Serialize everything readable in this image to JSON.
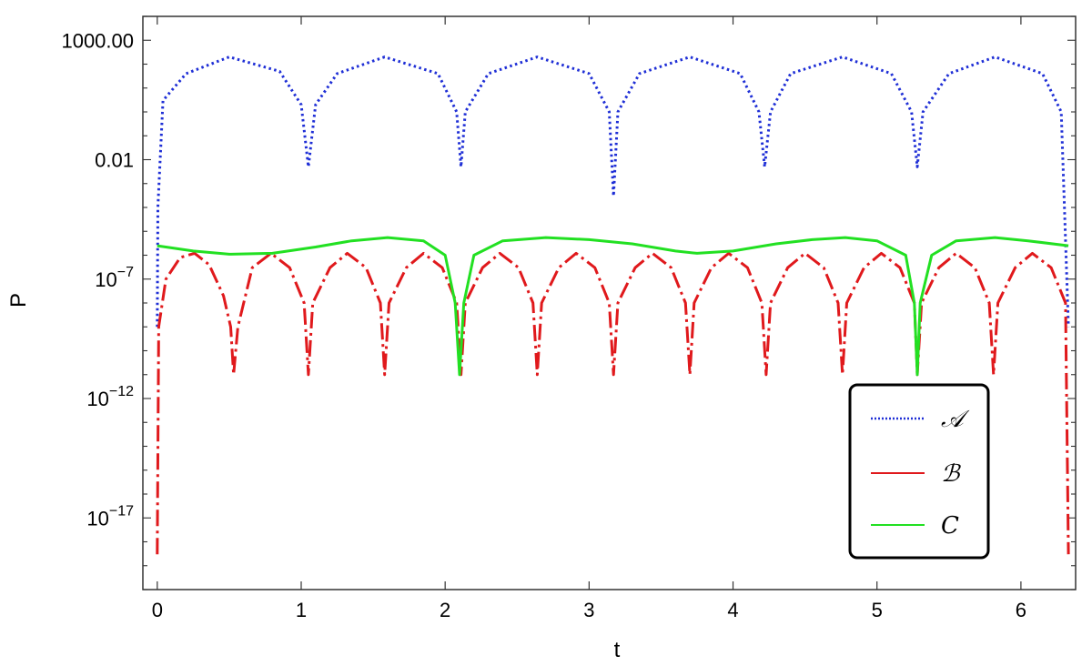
{
  "chart_data": {
    "type": "line",
    "xlabel": "t",
    "ylabel": "P",
    "xlim": [
      -0.1,
      6.38
    ],
    "y_scale": "log",
    "ylim_log10": [
      -20.0,
      4.0
    ],
    "x_ticks": [
      0,
      1,
      2,
      3,
      4,
      5,
      6
    ],
    "y_ticks": [
      {
        "value": 1000,
        "base": "1000.00",
        "exp": ""
      },
      {
        "value": 0.01,
        "base": "0.01",
        "exp": ""
      },
      {
        "value": 1e-07,
        "base": "10",
        "exp": "−7"
      },
      {
        "value": 1e-12,
        "base": "10",
        "exp": "−12"
      },
      {
        "value": 1e-17,
        "base": "10",
        "exp": "−17"
      }
    ],
    "frame": true,
    "legend_position": "bottom-right",
    "series": [
      {
        "name": "𝒜",
        "color": "#1f2fd6",
        "style": "dotted",
        "x": [
          0.0,
          0.004,
          0.04,
          0.2,
          0.5,
          0.85,
          1.0,
          1.05,
          1.1,
          1.25,
          1.58,
          1.95,
          2.08,
          2.11,
          2.14,
          2.3,
          2.64,
          3.0,
          3.14,
          3.17,
          3.2,
          3.35,
          3.7,
          4.05,
          4.18,
          4.22,
          4.26,
          4.4,
          4.76,
          5.1,
          5.24,
          5.28,
          5.32,
          5.5,
          5.82,
          6.15,
          6.28,
          6.33
        ],
        "y": [
          1e-09,
          0.0001,
          3.0,
          40,
          200,
          50,
          2,
          0.005,
          2,
          40,
          200,
          40,
          1,
          0.005,
          1,
          40,
          200,
          40,
          1,
          0.0003,
          1,
          40,
          200,
          40,
          1,
          0.005,
          1,
          40,
          200,
          40,
          1,
          0.005,
          1,
          40,
          200,
          40,
          1,
          1e-09
        ]
      },
      {
        "name": "ℬ",
        "color": "#e0191c",
        "style": "dashdot",
        "x": [
          0.0,
          0.01,
          0.06,
          0.16,
          0.26,
          0.36,
          0.46,
          0.51,
          0.53,
          0.56,
          0.66,
          0.79,
          0.92,
          1.02,
          1.05,
          1.08,
          1.2,
          1.32,
          1.45,
          1.55,
          1.58,
          1.61,
          1.73,
          1.85,
          1.98,
          2.08,
          2.11,
          2.14,
          2.26,
          2.38,
          2.51,
          2.61,
          2.64,
          2.67,
          2.79,
          2.91,
          3.04,
          3.14,
          3.17,
          3.2,
          3.32,
          3.44,
          3.57,
          3.67,
          3.7,
          3.73,
          3.85,
          3.97,
          4.1,
          4.2,
          4.23,
          4.26,
          4.38,
          4.5,
          4.63,
          4.73,
          4.76,
          4.79,
          4.91,
          5.03,
          5.16,
          5.26,
          5.28,
          5.31,
          5.43,
          5.55,
          5.68,
          5.78,
          5.81,
          5.84,
          5.96,
          6.08,
          6.21,
          6.31,
          6.33
        ],
        "y": [
          3e-19,
          1e-09,
          1e-07,
          8e-07,
          1.2e-06,
          4e-07,
          2e-08,
          1e-09,
          1e-11,
          1e-09,
          3e-07,
          1.2e-06,
          3e-07,
          1e-08,
          1e-11,
          1e-08,
          3e-07,
          1.2e-06,
          3e-07,
          1e-08,
          1e-11,
          1e-08,
          3e-07,
          1.2e-06,
          3e-07,
          1e-08,
          1e-11,
          1e-08,
          3e-07,
          1.2e-06,
          3e-07,
          1e-08,
          1e-11,
          1e-08,
          3e-07,
          1.2e-06,
          3e-07,
          1e-08,
          1e-11,
          1e-08,
          3e-07,
          1.2e-06,
          3e-07,
          1e-08,
          1e-11,
          1e-08,
          3e-07,
          1.2e-06,
          3e-07,
          1e-08,
          1e-11,
          1e-08,
          3e-07,
          1.2e-06,
          3e-07,
          1e-08,
          1e-11,
          1e-08,
          3e-07,
          1.2e-06,
          3e-07,
          1e-08,
          1e-11,
          1e-08,
          3e-07,
          1.2e-06,
          3e-07,
          1e-08,
          1e-11,
          1e-08,
          3e-07,
          1.2e-06,
          3e-07,
          1e-08,
          3e-19
        ]
      },
      {
        "name": "C",
        "color": "#22e022",
        "style": "solid",
        "x": [
          0.0,
          0.25,
          0.5,
          0.8,
          1.1,
          1.35,
          1.6,
          1.85,
          2.0,
          2.07,
          2.1,
          2.13,
          2.2,
          2.4,
          2.7,
          3.0,
          3.3,
          3.6,
          3.75,
          4.0,
          4.3,
          4.55,
          4.78,
          5.0,
          5.2,
          5.26,
          5.28,
          5.3,
          5.38,
          5.55,
          5.82,
          6.05,
          6.33
        ],
        "y": [
          2.5e-06,
          1.5e-06,
          1.1e-06,
          1.2e-06,
          2.2e-06,
          4e-06,
          5.5e-06,
          4e-06,
          1e-06,
          1e-08,
          1e-11,
          1e-08,
          1e-06,
          4e-06,
          5.5e-06,
          4.5e-06,
          3e-06,
          1.5e-06,
          1.2e-06,
          1.5e-06,
          3e-06,
          4.5e-06,
          5.5e-06,
          4e-06,
          1e-06,
          1e-08,
          1e-11,
          1e-08,
          1e-06,
          4e-06,
          5.5e-06,
          4e-06,
          2.5e-06
        ]
      }
    ]
  }
}
